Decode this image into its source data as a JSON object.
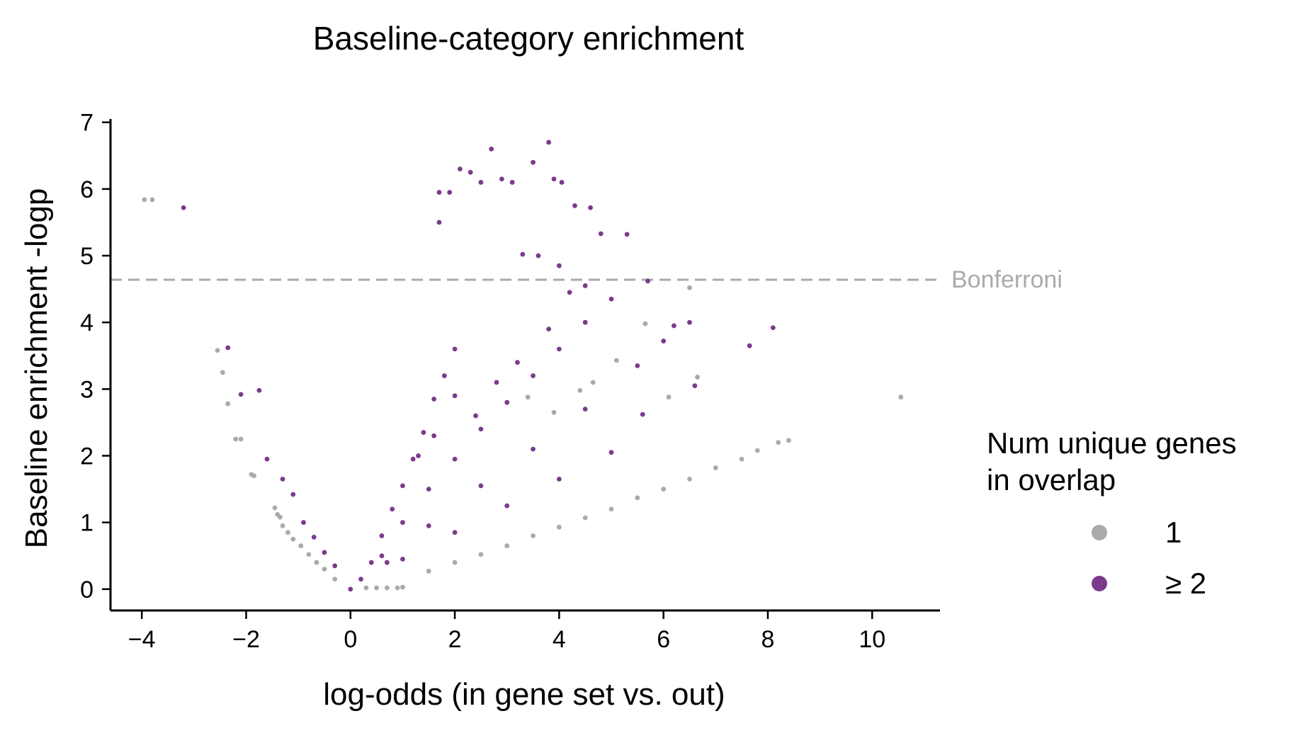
{
  "chart_data": {
    "type": "scatter",
    "title": "Baseline-category enrichment",
    "xlabel": "log-odds (in gene set vs. out)",
    "ylabel": "Baseline enrichment -logp",
    "xlim": [
      -4.6,
      11.3
    ],
    "ylim": [
      -0.32,
      7.05
    ],
    "x_ticks": [
      -4,
      -2,
      0,
      2,
      4,
      6,
      8,
      10
    ],
    "x_tick_labels": [
      "−4",
      "−2",
      "0",
      "2",
      "4",
      "6",
      "8",
      "10"
    ],
    "y_ticks": [
      0,
      1,
      2,
      3,
      4,
      5,
      6,
      7
    ],
    "y_tick_labels": [
      "0",
      "1",
      "2",
      "3",
      "4",
      "5",
      "6",
      "7"
    ],
    "grid": false,
    "reference_line": {
      "y": 4.64,
      "label": "Bonferroni",
      "style": "dashed",
      "color": "#aaaaaa"
    },
    "legend": {
      "title": "Num unique genes\nin overlap",
      "placement": "right",
      "entries": [
        "1",
        "≥ 2"
      ]
    },
    "series": [
      {
        "name": "1",
        "color": "#aaaaaa",
        "points": [
          [
            -3.95,
            5.84
          ],
          [
            -3.8,
            5.84
          ],
          [
            -2.55,
            3.58
          ],
          [
            -2.45,
            3.25
          ],
          [
            -2.35,
            2.78
          ],
          [
            -2.2,
            2.25
          ],
          [
            -2.1,
            2.25
          ],
          [
            -1.9,
            1.72
          ],
          [
            -1.85,
            1.7
          ],
          [
            -1.45,
            1.22
          ],
          [
            -1.4,
            1.12
          ],
          [
            -1.35,
            1.08
          ],
          [
            -1.3,
            0.95
          ],
          [
            -1.2,
            0.85
          ],
          [
            -1.1,
            0.75
          ],
          [
            -0.95,
            0.65
          ],
          [
            -0.8,
            0.52
          ],
          [
            -0.65,
            0.4
          ],
          [
            -0.5,
            0.3
          ],
          [
            -0.3,
            0.15
          ],
          [
            0.3,
            0.02
          ],
          [
            0.5,
            0.02
          ],
          [
            0.7,
            0.02
          ],
          [
            0.9,
            0.02
          ],
          [
            1.0,
            0.03
          ],
          [
            1.5,
            0.27
          ],
          [
            2.0,
            0.4
          ],
          [
            2.5,
            0.52
          ],
          [
            3.0,
            0.65
          ],
          [
            3.5,
            0.8
          ],
          [
            4.0,
            0.93
          ],
          [
            4.5,
            1.07
          ],
          [
            5.0,
            1.2
          ],
          [
            5.5,
            1.37
          ],
          [
            6.0,
            1.5
          ],
          [
            6.5,
            1.65
          ],
          [
            7.0,
            1.82
          ],
          [
            7.5,
            1.95
          ],
          [
            7.8,
            2.08
          ],
          [
            8.2,
            2.2
          ],
          [
            8.4,
            2.23
          ],
          [
            10.55,
            2.88
          ],
          [
            6.5,
            4.52
          ],
          [
            5.65,
            3.98
          ],
          [
            6.65,
            3.18
          ],
          [
            6.1,
            2.88
          ],
          [
            5.1,
            3.43
          ],
          [
            4.4,
            2.98
          ],
          [
            4.65,
            3.1
          ],
          [
            3.9,
            2.65
          ],
          [
            3.4,
            2.88
          ]
        ]
      },
      {
        "name": "≥ 2",
        "color": "#7b3a8c",
        "points": [
          [
            -3.2,
            5.72
          ],
          [
            -2.35,
            3.62
          ],
          [
            -2.1,
            2.92
          ],
          [
            -1.75,
            2.98
          ],
          [
            -1.6,
            1.95
          ],
          [
            -1.3,
            1.65
          ],
          [
            -1.1,
            1.42
          ],
          [
            -0.9,
            1.0
          ],
          [
            -0.7,
            0.78
          ],
          [
            -0.5,
            0.55
          ],
          [
            -0.3,
            0.35
          ],
          [
            0.0,
            0.0
          ],
          [
            0.2,
            0.15
          ],
          [
            0.4,
            0.4
          ],
          [
            0.6,
            0.8
          ],
          [
            0.8,
            1.2
          ],
          [
            1.0,
            1.55
          ],
          [
            1.2,
            1.95
          ],
          [
            1.4,
            2.35
          ],
          [
            1.6,
            2.85
          ],
          [
            1.8,
            3.2
          ],
          [
            2.0,
            3.6
          ],
          [
            0.6,
            0.5
          ],
          [
            1.0,
            1.0
          ],
          [
            1.5,
            1.5
          ],
          [
            2.0,
            1.95
          ],
          [
            2.5,
            2.4
          ],
          [
            3.0,
            2.8
          ],
          [
            3.5,
            3.2
          ],
          [
            4.0,
            3.6
          ],
          [
            4.5,
            4.0
          ],
          [
            0.7,
            0.4
          ],
          [
            1.5,
            0.95
          ],
          [
            2.5,
            1.55
          ],
          [
            3.5,
            2.1
          ],
          [
            4.5,
            2.7
          ],
          [
            5.5,
            3.35
          ],
          [
            6.0,
            3.72
          ],
          [
            6.5,
            4.0
          ],
          [
            1.0,
            0.45
          ],
          [
            2.0,
            0.85
          ],
          [
            3.0,
            1.25
          ],
          [
            4.0,
            1.65
          ],
          [
            5.0,
            2.05
          ],
          [
            5.6,
            2.62
          ],
          [
            6.6,
            3.05
          ],
          [
            1.7,
            5.95
          ],
          [
            1.7,
            5.5
          ],
          [
            1.9,
            5.95
          ],
          [
            2.1,
            6.3
          ],
          [
            2.3,
            6.25
          ],
          [
            2.5,
            6.1
          ],
          [
            2.7,
            6.6
          ],
          [
            2.9,
            6.15
          ],
          [
            3.1,
            6.1
          ],
          [
            3.5,
            6.4
          ],
          [
            3.8,
            6.7
          ],
          [
            3.9,
            6.15
          ],
          [
            4.05,
            6.1
          ],
          [
            4.3,
            5.75
          ],
          [
            4.6,
            5.72
          ],
          [
            4.8,
            5.33
          ],
          [
            5.3,
            5.32
          ],
          [
            3.3,
            5.02
          ],
          [
            3.6,
            5.0
          ],
          [
            4.0,
            4.85
          ],
          [
            4.2,
            4.45
          ],
          [
            4.5,
            4.55
          ],
          [
            5.0,
            4.35
          ],
          [
            5.7,
            4.62
          ],
          [
            6.2,
            3.95
          ],
          [
            7.65,
            3.65
          ],
          [
            8.1,
            3.92
          ],
          [
            2.0,
            2.9
          ],
          [
            2.4,
            2.6
          ],
          [
            2.8,
            3.1
          ],
          [
            3.2,
            3.4
          ],
          [
            3.8,
            3.9
          ],
          [
            1.3,
            2.0
          ],
          [
            1.6,
            2.3
          ]
        ]
      }
    ]
  }
}
